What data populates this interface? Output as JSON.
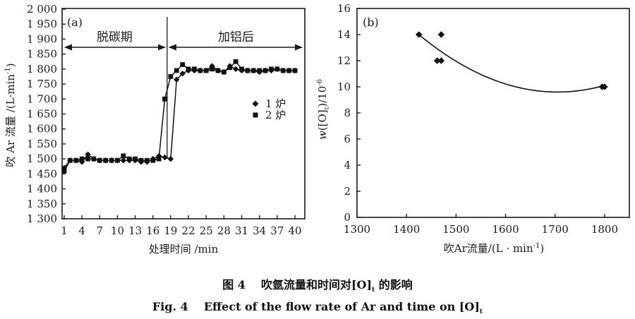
{
  "chart_data": [
    {
      "type": "line",
      "panel_label": "(a)",
      "title": "",
      "xlabel": "处理时间 /min",
      "ylabel": {
        "main": "吹 Ar 流量 /(L·min",
        "sup": "-1",
        "end": ")"
      },
      "xlim": [
        1,
        40
      ],
      "ylim": [
        1300,
        2000
      ],
      "x_ticks": [
        1,
        4,
        7,
        10,
        13,
        16,
        19,
        22,
        25,
        28,
        31,
        34,
        37,
        40
      ],
      "x_tick_labels": [
        "1",
        "4",
        "7",
        "10",
        "13",
        "16",
        "19",
        "22",
        "25",
        "28",
        "31",
        "34",
        "37",
        "40"
      ],
      "y_ticks": [
        1300,
        1350,
        1400,
        1450,
        1500,
        1550,
        1600,
        1650,
        1700,
        1750,
        1800,
        1850,
        1900,
        1950,
        2000
      ],
      "y_tick_labels": [
        "1 300",
        "1 350",
        "1 400",
        "1 450",
        "1 500",
        "1 550",
        "1 600",
        "1 650",
        "1 700",
        "1 750",
        "1 800",
        "1 850",
        "1 900",
        "1 950",
        "2 000"
      ],
      "grid": false,
      "legend": "center-right",
      "x": [
        1,
        2,
        3,
        4,
        5,
        6,
        7,
        8,
        9,
        10,
        11,
        12,
        13,
        14,
        15,
        16,
        17,
        18,
        19,
        20,
        21,
        22,
        23,
        24,
        25,
        26,
        27,
        28,
        29,
        30,
        31,
        32,
        33,
        34,
        35,
        36,
        37,
        38,
        39,
        40
      ],
      "series": [
        {
          "name": "1 炉",
          "marker": "diamond",
          "values": [
            1470,
            1495,
            1495,
            1490,
            1515,
            1500,
            1495,
            1495,
            1495,
            1495,
            1495,
            1495,
            1495,
            1490,
            1490,
            1500,
            1510,
            1505,
            1500,
            1765,
            1785,
            1795,
            1795,
            1795,
            1795,
            1810,
            1795,
            1790,
            1810,
            1800,
            1795,
            1795,
            1795,
            1790,
            1795,
            1795,
            1800,
            1795,
            1795,
            1795
          ]
        },
        {
          "name": "2 炉",
          "marker": "square",
          "values": [
            1460,
            1495,
            1495,
            1500,
            1500,
            1500,
            1495,
            1495,
            1495,
            1495,
            1510,
            1500,
            1500,
            1495,
            1495,
            1495,
            1500,
            1700,
            1775,
            1795,
            1815,
            1800,
            1800,
            1795,
            1795,
            1800,
            1795,
            1790,
            1805,
            1825,
            1800,
            1795,
            1795,
            1795,
            1795,
            1800,
            1800,
            1795,
            1795,
            1795
          ]
        }
      ],
      "annotations": {
        "boundary": 18.4,
        "phases": [
          {
            "label": "脱碳期",
            "from": 1,
            "to": 18.4
          },
          {
            "label": "加铝后",
            "from": 18.4,
            "to": 40
          }
        ]
      }
    },
    {
      "type": "scatter",
      "panel_label": "(b)",
      "title": "",
      "xlabel": {
        "main": "吹Ar流量/(L · min",
        "sup": "-1",
        "end": ")"
      },
      "ylabel": {
        "w": "w",
        "mid": "([O]",
        "sub": "t",
        "close": ")/10",
        "sup": "-6"
      },
      "xlim": [
        1300,
        1850
      ],
      "ylim": [
        0,
        16
      ],
      "x_ticks": [
        1300,
        1400,
        1500,
        1600,
        1700,
        1800
      ],
      "x_tick_labels": [
        "1300",
        "1400",
        "1500",
        "1600",
        "1700",
        "1800"
      ],
      "y_ticks": [
        0,
        2,
        4,
        6,
        8,
        10,
        12,
        14,
        16
      ],
      "y_tick_labels": [
        "0",
        "2",
        "4",
        "6",
        "8",
        "10",
        "12",
        "14",
        "16"
      ],
      "grid": false,
      "points": [
        {
          "x": 1425,
          "y": 14
        },
        {
          "x": 1470,
          "y": 14
        },
        {
          "x": 1462,
          "y": 12
        },
        {
          "x": 1470,
          "y": 12
        },
        {
          "x": 1795,
          "y": 10
        },
        {
          "x": 1800,
          "y": 10
        }
      ],
      "trendline": {
        "type": "quadratic",
        "vertex_x": 1705,
        "vertex_y": 9.6,
        "a": 5.61e-05,
        "x_range": [
          1425,
          1798
        ]
      }
    }
  ],
  "caption": {
    "zh_prefix": "图 4",
    "zh_text": "吹氩流量和时间对[O]",
    "zh_sub": "t",
    "zh_end": " 的影响",
    "en_prefix": "Fig. 4",
    "en_text": "Effect of the flow rate of Ar and time on [O]",
    "en_sub": "t"
  }
}
